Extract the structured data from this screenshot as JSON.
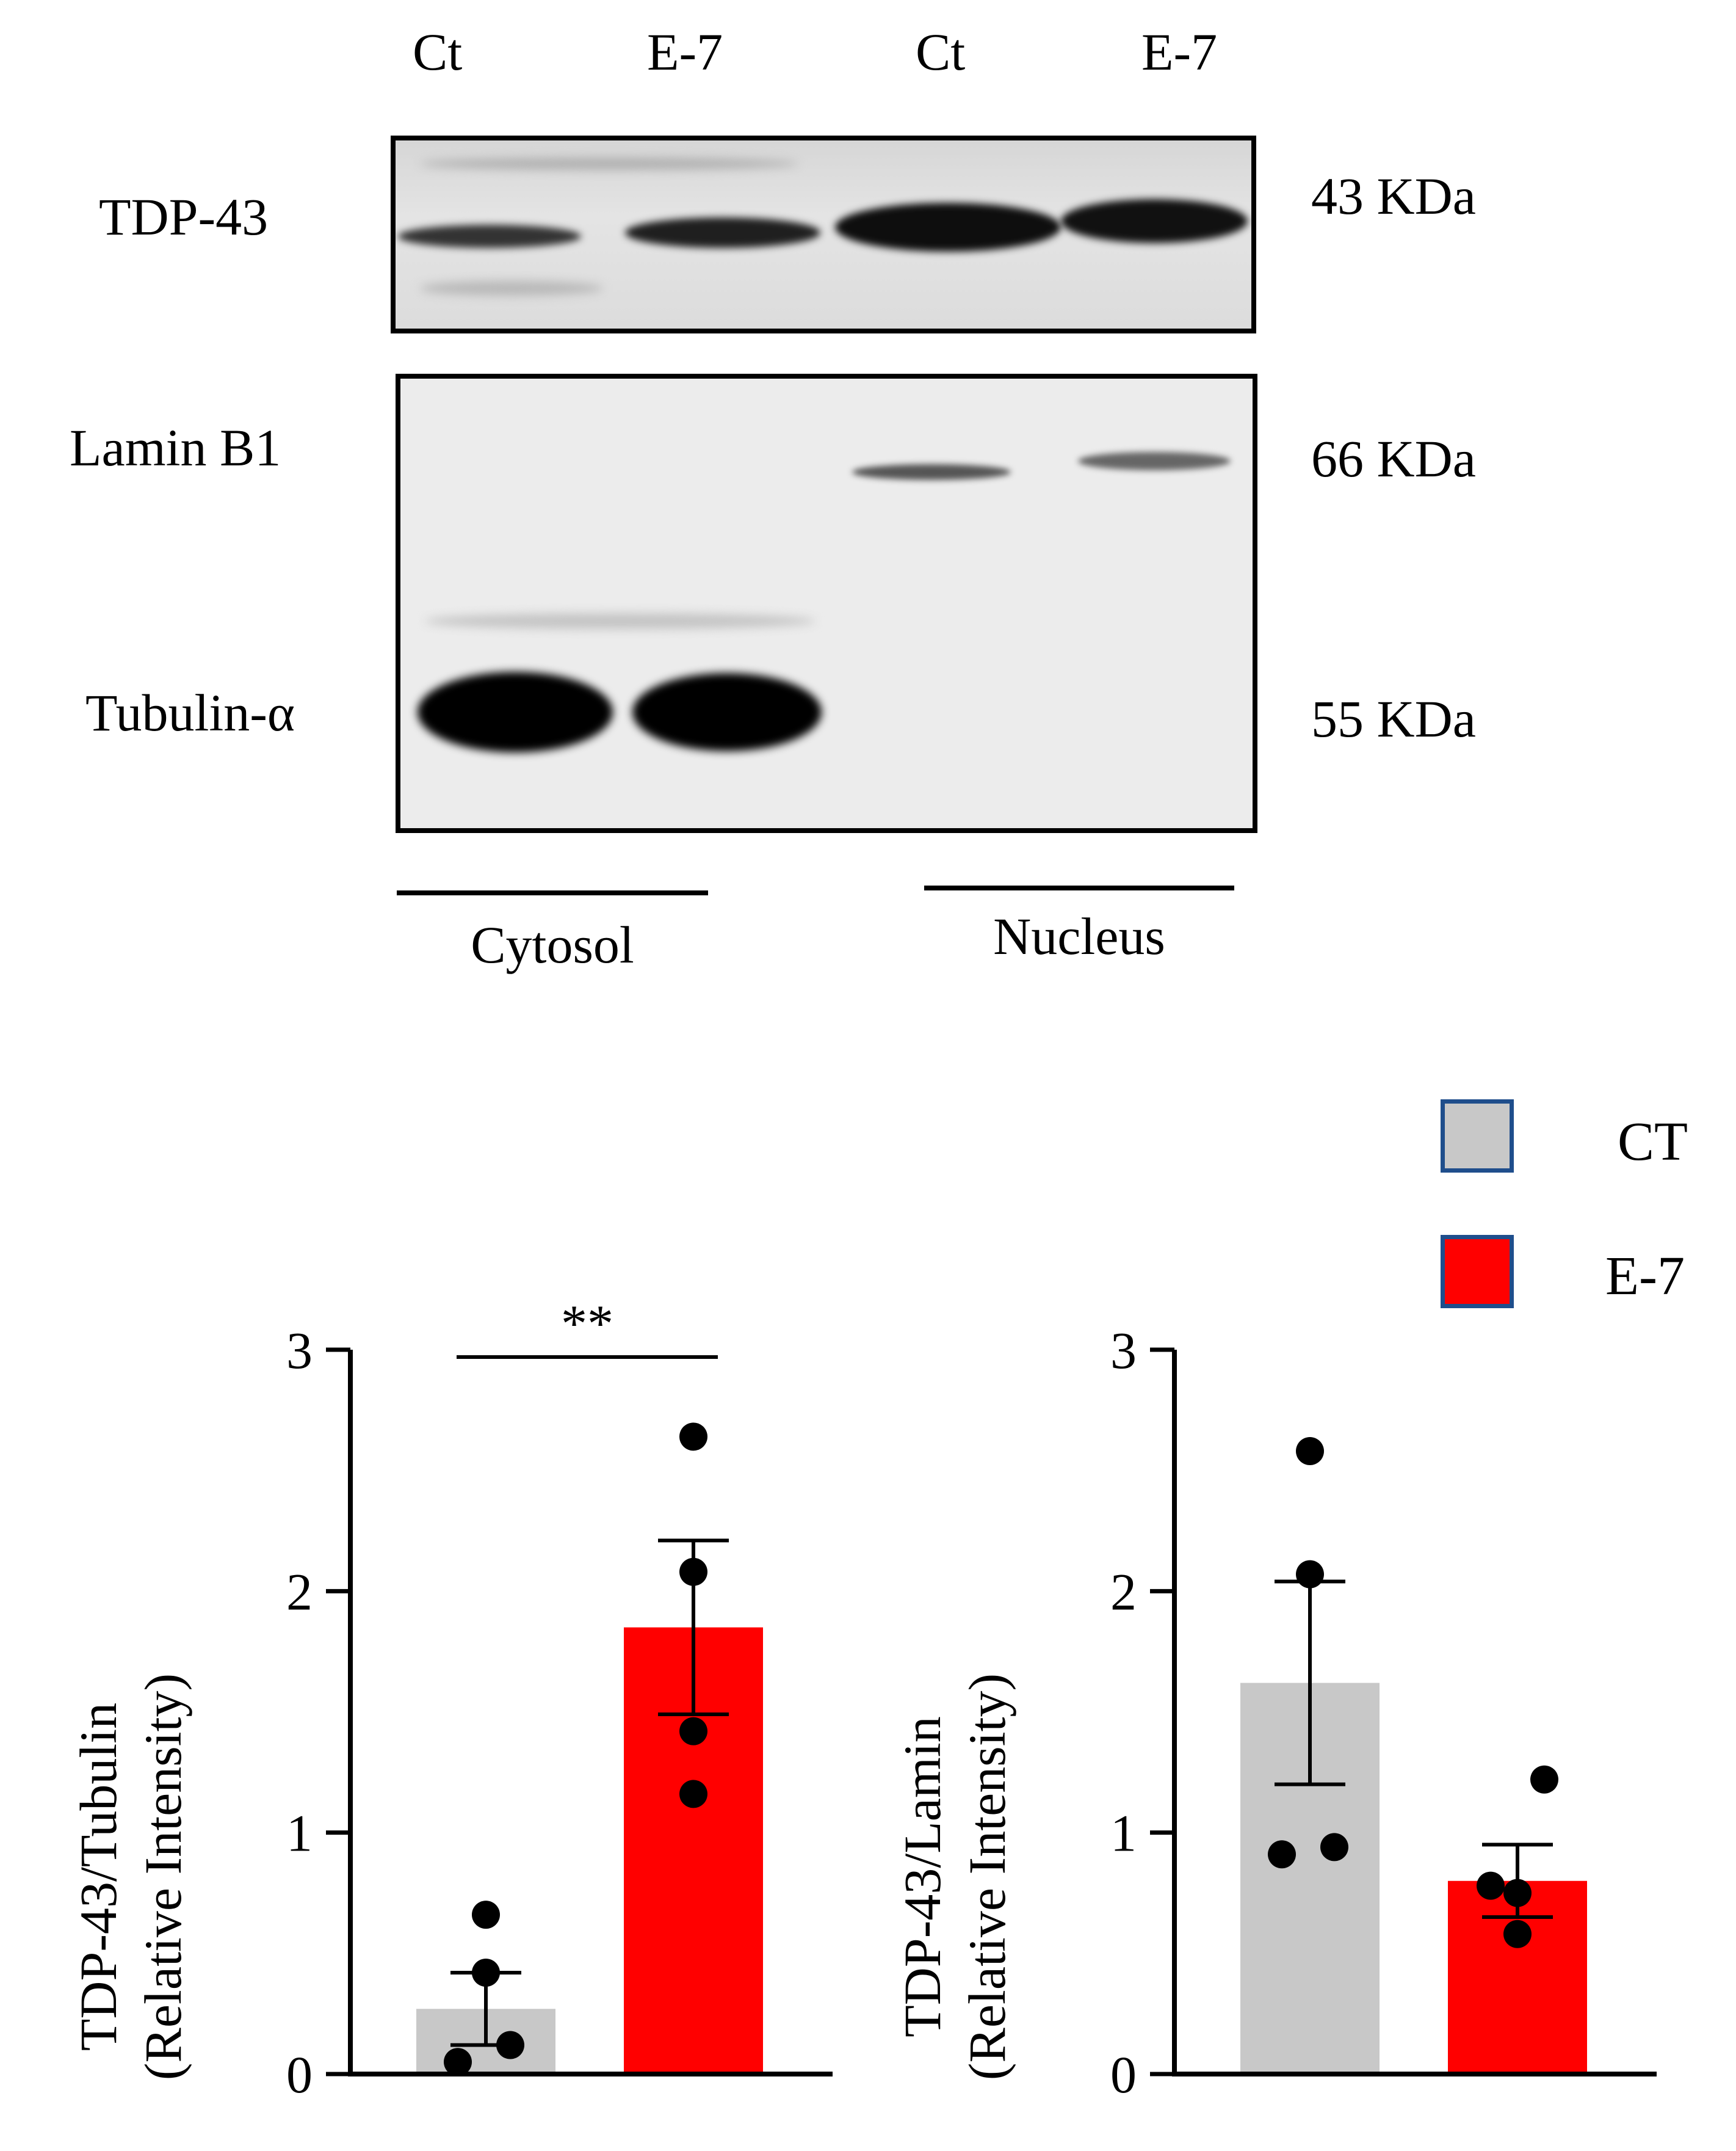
{
  "blot": {
    "lanes": [
      "Ct",
      "E-7",
      "Ct",
      "E-7"
    ],
    "rows": [
      "TDP-43",
      "Lamin B1",
      "Tubulin-α"
    ],
    "kda": [
      "43 KDa",
      "66 KDa",
      "55 KDa"
    ],
    "fractions": [
      "Cytosol",
      "Nucleus"
    ]
  },
  "legend": {
    "items": [
      {
        "label": "CT",
        "color": "#c8c8c8"
      },
      {
        "label": "E-7",
        "color": "#ff0000"
      }
    ],
    "border_color": "#1f4e8c"
  },
  "chart_data": [
    {
      "type": "bar",
      "categories": [
        "CT",
        "E-7"
      ],
      "values": [
        0.27,
        1.85
      ],
      "errors": [
        0.15,
        0.36
      ],
      "points": [
        [
          0.66,
          0.42,
          0.12,
          0.05
        ],
        [
          2.64,
          2.08,
          1.42,
          1.16
        ]
      ],
      "colors": [
        "#c8c8c8",
        "#ff0000"
      ],
      "ylabel_line1": "TDP-43/Tubulin",
      "ylabel_line2": "(Relative Intensity)",
      "ylim": [
        0,
        3
      ],
      "yticks": [
        "0",
        "1",
        "2",
        "3"
      ],
      "significance": "**"
    },
    {
      "type": "bar",
      "categories": [
        "CT",
        "E-7"
      ],
      "values": [
        1.62,
        0.8
      ],
      "errors": [
        0.42,
        0.15
      ],
      "points": [
        [
          2.58,
          2.07,
          0.94,
          0.91
        ],
        [
          1.22,
          0.78,
          0.75,
          0.58
        ]
      ],
      "colors": [
        "#c8c8c8",
        "#ff0000"
      ],
      "ylabel_line1": "TDP-43/Lamin",
      "ylabel_line2": "(Relative Intensity)",
      "ylim": [
        0,
        3
      ],
      "yticks": [
        "0",
        "1",
        "2",
        "3"
      ],
      "significance": ""
    }
  ]
}
